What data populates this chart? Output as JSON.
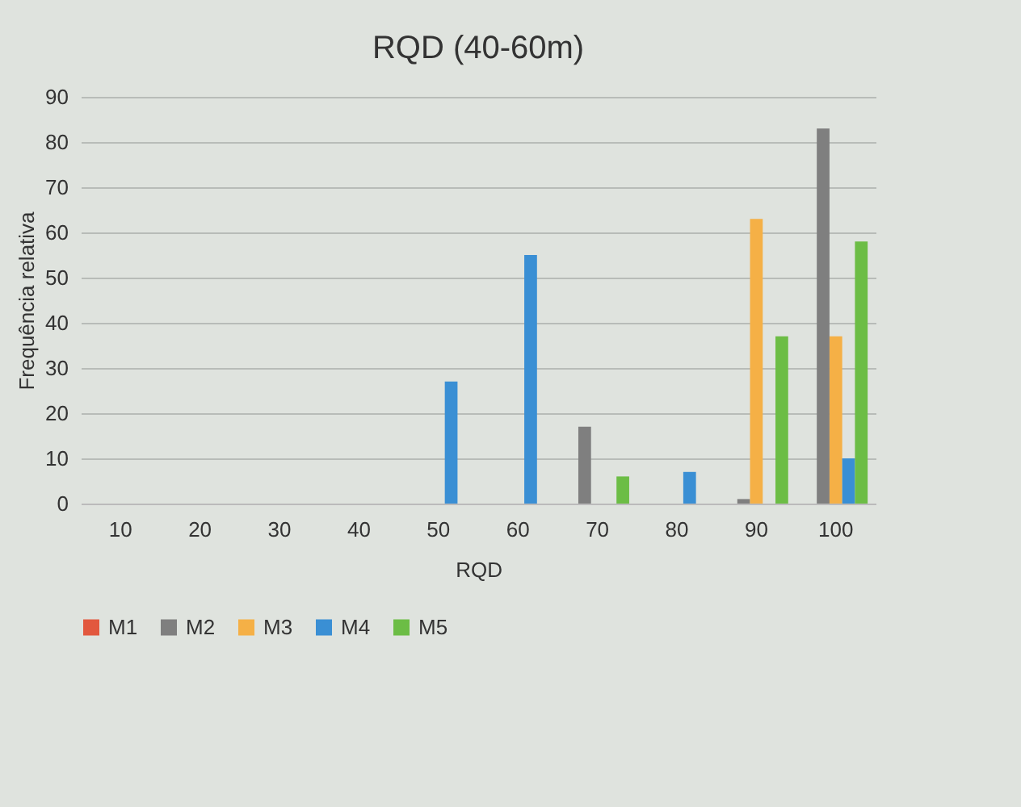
{
  "chart_data": {
    "type": "bar",
    "title": "RQD (40-60m)",
    "xlabel": "RQD",
    "ylabel": "Frequência relativa",
    "categories": [
      "10",
      "20",
      "30",
      "40",
      "50",
      "60",
      "70",
      "80",
      "90",
      "100"
    ],
    "series": [
      {
        "name": "M1",
        "color": "#e2583e",
        "values": [
          null,
          null,
          null,
          null,
          null,
          null,
          null,
          null,
          null,
          null
        ]
      },
      {
        "name": "M2",
        "color": "#7f7f7f",
        "values": [
          null,
          null,
          null,
          null,
          null,
          null,
          17,
          null,
          1,
          83
        ]
      },
      {
        "name": "M3",
        "color": "#f5b046",
        "values": [
          null,
          null,
          null,
          null,
          null,
          null,
          null,
          null,
          63,
          37
        ]
      },
      {
        "name": "M4",
        "color": "#3a8fd4",
        "values": [
          null,
          null,
          null,
          null,
          27,
          55,
          null,
          7,
          null,
          10
        ]
      },
      {
        "name": "M5",
        "color": "#6cbd45",
        "values": [
          null,
          null,
          null,
          null,
          null,
          null,
          6,
          null,
          37,
          58
        ]
      }
    ],
    "ylim": [
      0,
      90
    ],
    "yticks": [
      0,
      10,
      20,
      30,
      40,
      50,
      60,
      70,
      80,
      90
    ],
    "grid": "y",
    "legend": "bottom"
  }
}
